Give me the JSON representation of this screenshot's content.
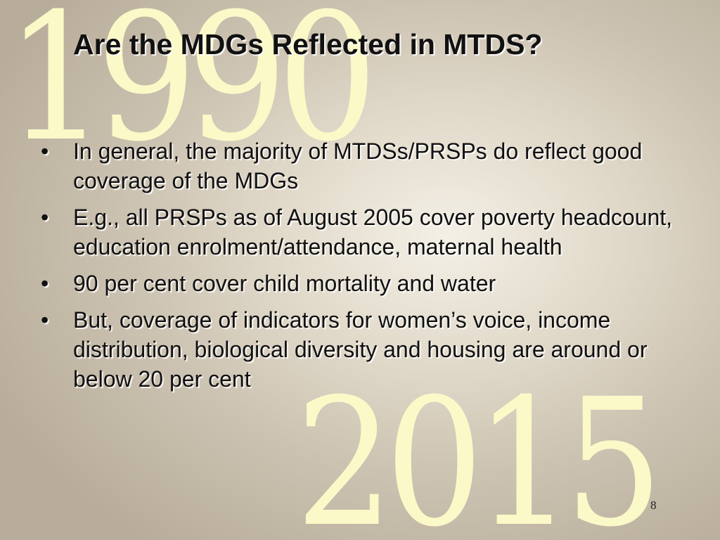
{
  "background": {
    "year_top": "1990",
    "year_bottom": "2015",
    "year_color": "#fbf9c8"
  },
  "slide": {
    "title": "Are the MDGs Reflected in MTDS?",
    "bullet_glyph": "•",
    "bullets": [
      "In general, the majority of MTDSs/PRSPs do reflect good coverage of the MDGs",
      "E.g., all PRSPs as of August 2005 cover poverty headcount, education enrolment/attendance, maternal health",
      "90 per cent cover child mortality and water",
      "But, coverage of indicators for women’s voice, income distribution, biological diversity and housing are around or below 20 per cent"
    ],
    "page_number": "8"
  }
}
